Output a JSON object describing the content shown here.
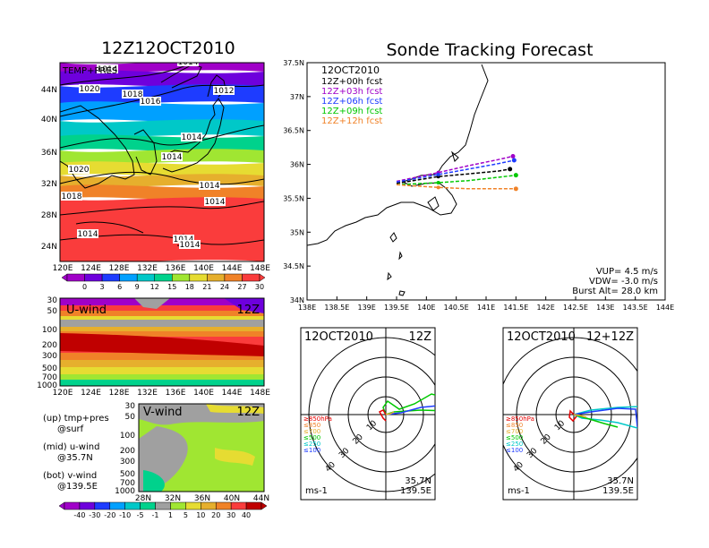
{
  "chart_data": [
    {
      "type": "heatmap",
      "title": "12Z12OCT2010",
      "panel_label": "TEMP+PRES",
      "x_ticks": [
        "120E",
        "124E",
        "128E",
        "132E",
        "136E",
        "140E",
        "144E",
        "148E"
      ],
      "y_ticks": [
        "24N",
        "28N",
        "32N",
        "36N",
        "40N",
        "44N"
      ],
      "colorbar_ticks": [
        "0",
        "3",
        "6",
        "9",
        "12",
        "15",
        "18",
        "21",
        "24",
        "27",
        "30"
      ],
      "colors": [
        "#a000c8",
        "#6e00dc",
        "#1e3cff",
        "#00a0ff",
        "#00c8c8",
        "#00d28c",
        "#a0e632",
        "#e6dc32",
        "#e6af2d",
        "#f08228",
        "#fa3c3c"
      ],
      "isobar_labels": [
        "1014",
        "1014",
        "1020",
        "1018",
        "1016",
        "1012",
        "1014",
        "1014",
        "1020",
        "1018",
        "1014",
        "1014",
        "1014",
        "1014",
        "1014"
      ]
    },
    {
      "type": "heatmap",
      "title": "U-wind",
      "time_label": "12Z",
      "y_ticks": [
        "30",
        "50",
        "100",
        "200",
        "300",
        "500",
        "700",
        "1000"
      ],
      "x_ticks": [
        "120E",
        "124E",
        "128E",
        "132E",
        "136E",
        "140E",
        "144E",
        "148E"
      ]
    },
    {
      "type": "heatmap",
      "title": "V-wind",
      "time_label": "12Z",
      "y_ticks": [
        "30",
        "50",
        "100",
        "200",
        "300",
        "500",
        "700",
        "1000"
      ],
      "x_ticks": [
        "28N",
        "32N",
        "36N",
        "40N",
        "44N"
      ],
      "colorbar_ticks": [
        "-40",
        "-30",
        "-20",
        "-10",
        "-5",
        "-1",
        "1",
        "5",
        "10",
        "20",
        "30",
        "40"
      ],
      "colors": [
        "#a000c8",
        "#6e00dc",
        "#1e3cff",
        "#00a0ff",
        "#00c8c8",
        "#00d28c",
        "#a0a0a0",
        "#a0e632",
        "#e6dc32",
        "#e6af2d",
        "#f08228",
        "#fa3c3c",
        "#c00000"
      ]
    },
    {
      "type": "line",
      "title": "Sonde Tracking Forecast",
      "date_label": "12OCT2010",
      "x_ticks": [
        "138E",
        "138.5E",
        "139E",
        "139.5E",
        "140E",
        "140.5E",
        "141E",
        "141.5E",
        "142E",
        "142.5E",
        "143E",
        "143.5E",
        "144E"
      ],
      "y_ticks": [
        "34N",
        "34.5N",
        "35N",
        "35.5N",
        "36N",
        "36.5N",
        "37N",
        "37.5N"
      ],
      "xlim": [
        138,
        144
      ],
      "ylim": [
        34,
        37.5
      ],
      "series": [
        {
          "name": "12Z+00h fcst",
          "color": "#000000",
          "x": [
            139.5,
            140.2,
            140.7,
            141.2,
            141.4
          ],
          "y": [
            35.72,
            35.82,
            35.86,
            35.9,
            35.93
          ]
        },
        {
          "name": "12Z+03h fcst",
          "color": "#a000c8",
          "x": [
            139.5,
            140.2,
            140.7,
            141.2,
            141.45
          ],
          "y": [
            35.75,
            35.88,
            35.98,
            36.07,
            36.12
          ]
        },
        {
          "name": "12Z+06h fcst",
          "color": "#1e3cff",
          "x": [
            139.5,
            140.2,
            140.7,
            141.2,
            141.47
          ],
          "y": [
            35.74,
            35.85,
            35.93,
            36.01,
            36.06
          ]
        },
        {
          "name": "12Z+09h fcst",
          "color": "#00c800",
          "x": [
            139.5,
            140.2,
            140.7,
            141.2,
            141.5
          ],
          "y": [
            35.7,
            35.73,
            35.76,
            35.81,
            35.84
          ]
        },
        {
          "name": "12Z+12h fcst",
          "color": "#f08228",
          "x": [
            139.5,
            140.2,
            140.7,
            141.2,
            141.5
          ],
          "y": [
            35.7,
            35.66,
            35.64,
            35.64,
            35.64
          ]
        }
      ],
      "info_lines": [
        "VUP= 4.5 m/s",
        "VDW= -3.0 m/s",
        "Burst Alt= 28.0 km"
      ]
    },
    {
      "type": "polar",
      "date_label": "12OCT2010",
      "time_label": "12Z",
      "ring_labels": [
        "10",
        "20",
        "30",
        "40"
      ],
      "unit_label": "ms-1",
      "location": [
        "35.7N",
        "139.5E"
      ],
      "legend": [
        {
          "label": "≥850hPa",
          "color": "#e60000"
        },
        {
          "label": "≤850",
          "color": "#f08228"
        },
        {
          "label": "≤700",
          "color": "#e6af2d"
        },
        {
          "label": "≤500",
          "color": "#00c800"
        },
        {
          "label": "≤250",
          "color": "#00c8c8"
        },
        {
          "label": "≤100",
          "color": "#1e3cff"
        }
      ]
    },
    {
      "type": "polar",
      "date_label": "12OCT2010",
      "time_label": "12+12Z",
      "ring_labels": [
        "10",
        "20",
        "30",
        "40"
      ],
      "unit_label": "ms-1",
      "location": [
        "35.7N",
        "139.5E"
      ],
      "legend": [
        {
          "label": "≥850hPa",
          "color": "#e60000"
        },
        {
          "label": "≤850",
          "color": "#f08228"
        },
        {
          "label": "≤700",
          "color": "#e6af2d"
        },
        {
          "label": "≤500",
          "color": "#00c800"
        },
        {
          "label": "≤250",
          "color": "#00c8c8"
        },
        {
          "label": "≤100",
          "color": "#1e3cff"
        }
      ]
    }
  ],
  "notes": {
    "top": [
      "(up) tmp+pres",
      "@surf"
    ],
    "mid": [
      "(mid) u-wind",
      "@35.7N"
    ],
    "bot": [
      "(bot) v-wind",
      "@139.5E"
    ]
  }
}
